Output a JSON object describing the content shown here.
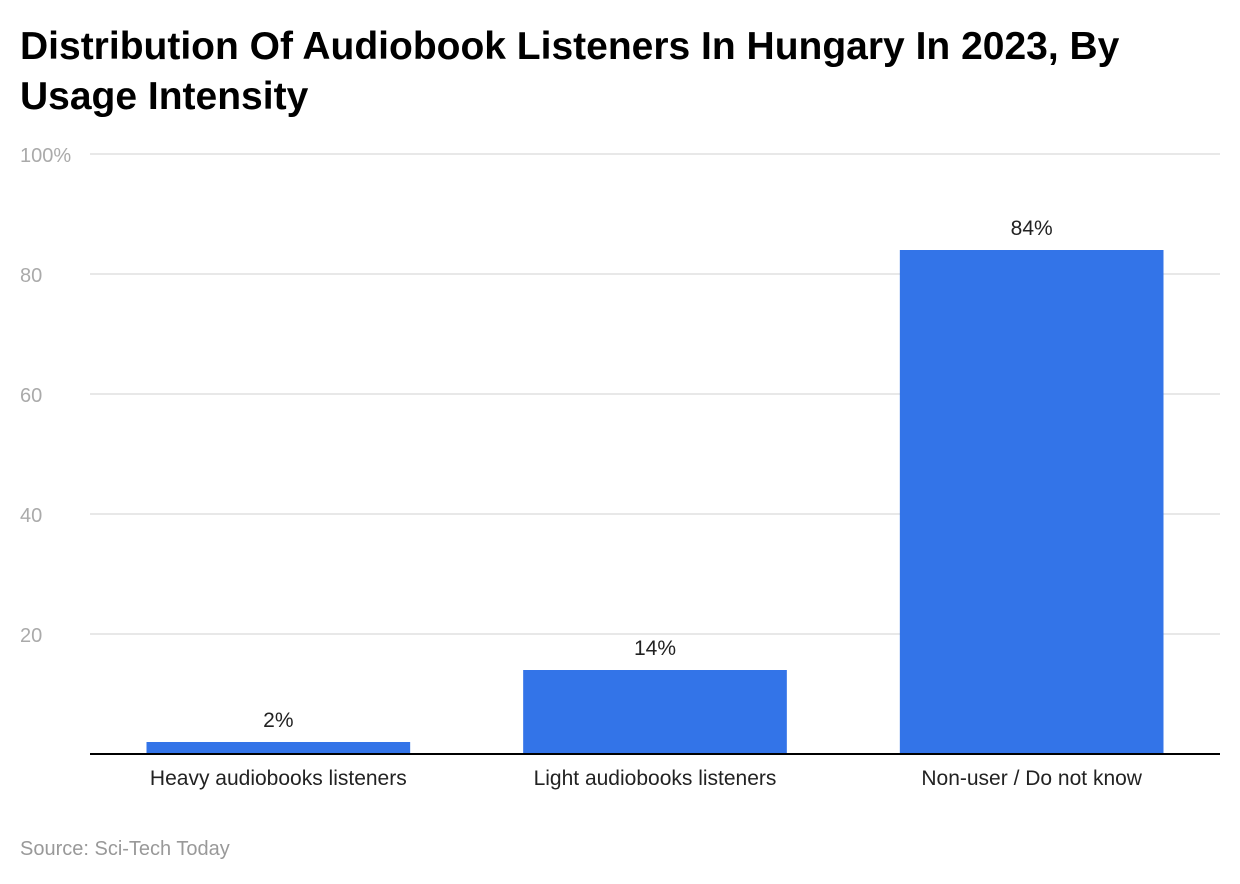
{
  "colors": {
    "bar": "#3374e8",
    "grid": "#e0e0e0",
    "axis": "#000000",
    "tick_label": "#aaaaaa",
    "category_label": "#222222",
    "data_label": "#222222"
  },
  "chart_data": {
    "type": "bar",
    "title": "Distribution Of Audiobook Listeners In Hungary In 2023, By Usage Intensity",
    "categories": [
      "Heavy audiobooks listeners",
      "Light audiobooks listeners",
      "Non-user / Do not know"
    ],
    "values": [
      2,
      14,
      84
    ],
    "data_labels": [
      "2%",
      "14%",
      "84%"
    ],
    "xlabel": "",
    "ylabel": "",
    "ylim": [
      0,
      100
    ],
    "yticks": [
      20,
      40,
      60,
      80,
      100
    ],
    "ytick_labels": [
      "20",
      "40",
      "60",
      "80",
      "100%"
    ],
    "grid": true,
    "legend": "none"
  },
  "source": "Source: Sci-Tech Today"
}
